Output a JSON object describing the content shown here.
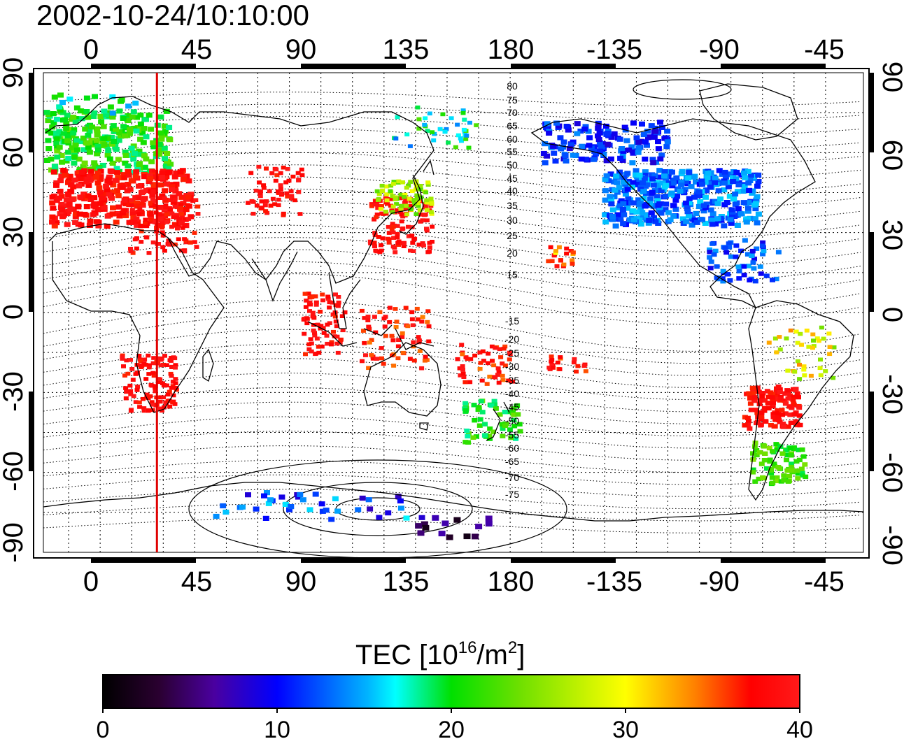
{
  "title": "2002-10-24/10:10:00",
  "map": {
    "top_lon_labels": [
      "0",
      "45",
      "90",
      "135",
      "180",
      "-135",
      "-90",
      "-45"
    ],
    "bottom_lon_labels": [
      "0",
      "45",
      "90",
      "135",
      "180",
      "-135",
      "-90",
      "-45"
    ],
    "left_lat_labels": [
      "90",
      "60",
      "30",
      "0",
      "-30",
      "-60",
      "-90"
    ],
    "right_lat_labels": [
      "90",
      "60",
      "30",
      "0",
      "-30",
      "-60",
      "-90"
    ],
    "marker_longitude": 27,
    "marker_color": "#e00000",
    "contour_labels": [
      "80",
      "75",
      "70",
      "65",
      "60",
      "55",
      "50",
      "45",
      "40",
      "35",
      "30",
      "25",
      "20",
      "15",
      "-15",
      "-20",
      "-25",
      "-30",
      "-35",
      "-40",
      "-45",
      "-50",
      "-55",
      "-60",
      "-65",
      "-70",
      "-75"
    ]
  },
  "colorbar": {
    "title_main": "TEC  [10",
    "title_exp": "16",
    "title_mid": "/m",
    "title_exp2": "2",
    "title_end": "]",
    "tick_labels": [
      "0",
      "10",
      "20",
      "30",
      "40"
    ],
    "min": 0,
    "max": 40
  }
}
